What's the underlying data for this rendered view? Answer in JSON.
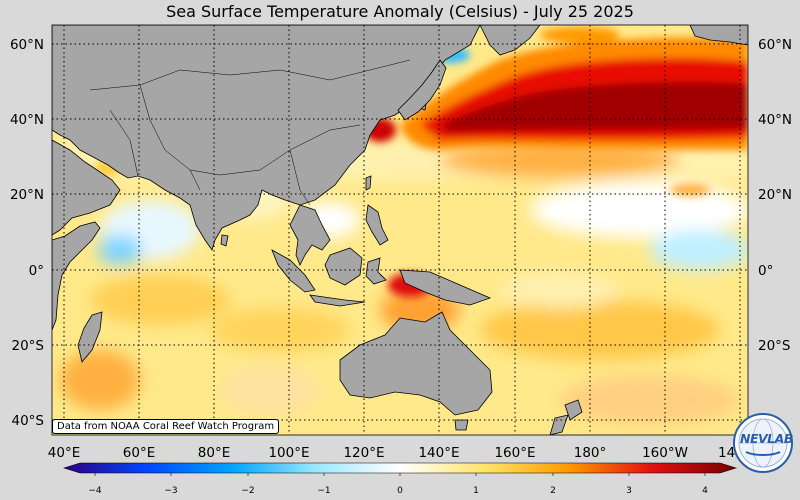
{
  "title": "Sea Surface Temperature Anomaly (Celsius) - July 25 2025",
  "map": {
    "lat_labels": [
      "60°N",
      "40°N",
      "20°N",
      "0°",
      "20°S",
      "40°S"
    ],
    "lon_labels": [
      "40°E",
      "60°E",
      "80°E",
      "100°E",
      "120°E",
      "140°E",
      "160°E",
      "180°",
      "160°W",
      "14"
    ],
    "land_color": "#a6a6a6",
    "grid": true
  },
  "credit": "Data from NOAA Coral Reef Watch Program",
  "colorbar": {
    "ticks": [
      "−4",
      "−3",
      "−2",
      "−1",
      "0",
      "1",
      "2",
      "3",
      "4"
    ],
    "colors": [
      "#2b0080",
      "#0047ff",
      "#00a5ff",
      "#9be8ff",
      "#ffffff",
      "#ffe56a",
      "#ff9a00",
      "#e01010",
      "#7a0000"
    ]
  },
  "logo": {
    "text": "NEVLAB",
    "icon": "nev-lab-globe-logo"
  }
}
